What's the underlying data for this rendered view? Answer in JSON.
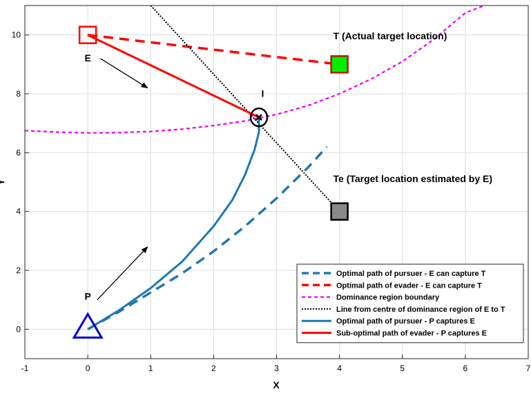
{
  "chart_data": {
    "type": "line",
    "xlabel": "X",
    "ylabel": "Y",
    "xlim": [
      -1,
      7
    ],
    "ylim": [
      -1,
      11
    ],
    "xticks": [
      -1,
      0,
      1,
      2,
      3,
      4,
      5,
      6,
      7
    ],
    "yticks": [
      0,
      2,
      4,
      6,
      8,
      10
    ],
    "grid": true,
    "legend_position": "bottom-right",
    "series": [
      {
        "name": "Optimal path of pursuer - E can capture T",
        "style": "dashed",
        "color": "#1f77b4",
        "x": [
          0,
          0.5,
          1,
          1.5,
          2,
          2.5,
          3,
          3.5,
          3.8
        ],
        "y": [
          0,
          0.6,
          1.25,
          1.9,
          2.65,
          3.5,
          4.45,
          5.5,
          6.2
        ]
      },
      {
        "name": "Optimal path of evader - E can capture T",
        "style": "dashed",
        "color": "#ff0000",
        "x": [
          0,
          4
        ],
        "y": [
          10,
          9
        ]
      },
      {
        "name": "Dominance region boundary",
        "style": "dotted-short",
        "color": "#ee00ee",
        "x": [
          -1,
          -0.5,
          0,
          0.5,
          1,
          1.5,
          2,
          2.5,
          3,
          3.5,
          4,
          4.5,
          5,
          5.5,
          6,
          6.3
        ],
        "y": [
          6.75,
          6.7,
          6.67,
          6.68,
          6.72,
          6.8,
          6.92,
          7.08,
          7.3,
          7.6,
          8.0,
          8.5,
          9.1,
          9.85,
          10.75,
          11
        ]
      },
      {
        "name": "Line from centre of dominance region of E to T",
        "style": "dotted",
        "color": "#000000",
        "x": [
          1,
          4
        ],
        "y": [
          11,
          4
        ]
      },
      {
        "name": "Optimal path of pursuer - P captures E",
        "style": "solid",
        "color": "#1f77b4",
        "x": [
          0,
          0.5,
          1,
          1.5,
          2,
          2.3,
          2.5,
          2.65,
          2.72,
          2.72
        ],
        "y": [
          0,
          0.65,
          1.4,
          2.3,
          3.5,
          4.4,
          5.25,
          6.1,
          6.7,
          7.2
        ]
      },
      {
        "name": "Sub-optimal path of evader - P captures E",
        "style": "solid",
        "color": "#ff0000",
        "x": [
          0,
          2.72
        ],
        "y": [
          10,
          7.2
        ]
      }
    ],
    "markers": [
      {
        "name": "E",
        "shape": "square",
        "x": 0,
        "y": 10,
        "edge": "#ff0000",
        "fill": "none"
      },
      {
        "name": "T",
        "shape": "square",
        "x": 4,
        "y": 9,
        "edge": "#aa2200",
        "fill": "#00ee00"
      },
      {
        "name": "Te",
        "shape": "square",
        "x": 4,
        "y": 4,
        "edge": "#000000",
        "fill": "#888888"
      },
      {
        "name": "P",
        "shape": "triangle",
        "x": 0,
        "y": 0,
        "edge": "#0000cc",
        "fill": "none"
      },
      {
        "name": "I",
        "shape": "circle-x",
        "x": 2.72,
        "y": 7.2,
        "edge": "#000000",
        "fill": "none"
      }
    ],
    "annotations": [
      {
        "text": "T (Actual target location)",
        "x": 3.9,
        "y": 9.85
      },
      {
        "text": "Te (Target location estimated by E)",
        "x": 3.9,
        "y": 5.0
      },
      {
        "text": "E",
        "x": 0.0,
        "y": 9.1
      },
      {
        "text": "I",
        "x": 2.78,
        "y": 7.9
      },
      {
        "text": "P",
        "x": 0.0,
        "y": 1.0
      }
    ],
    "arrows": [
      {
        "x1": 0.2,
        "y1": 9.2,
        "x2": 0.95,
        "y2": 8.2
      },
      {
        "x1": 0.15,
        "y1": 1.0,
        "x2": 0.95,
        "y2": 2.8
      }
    ]
  }
}
